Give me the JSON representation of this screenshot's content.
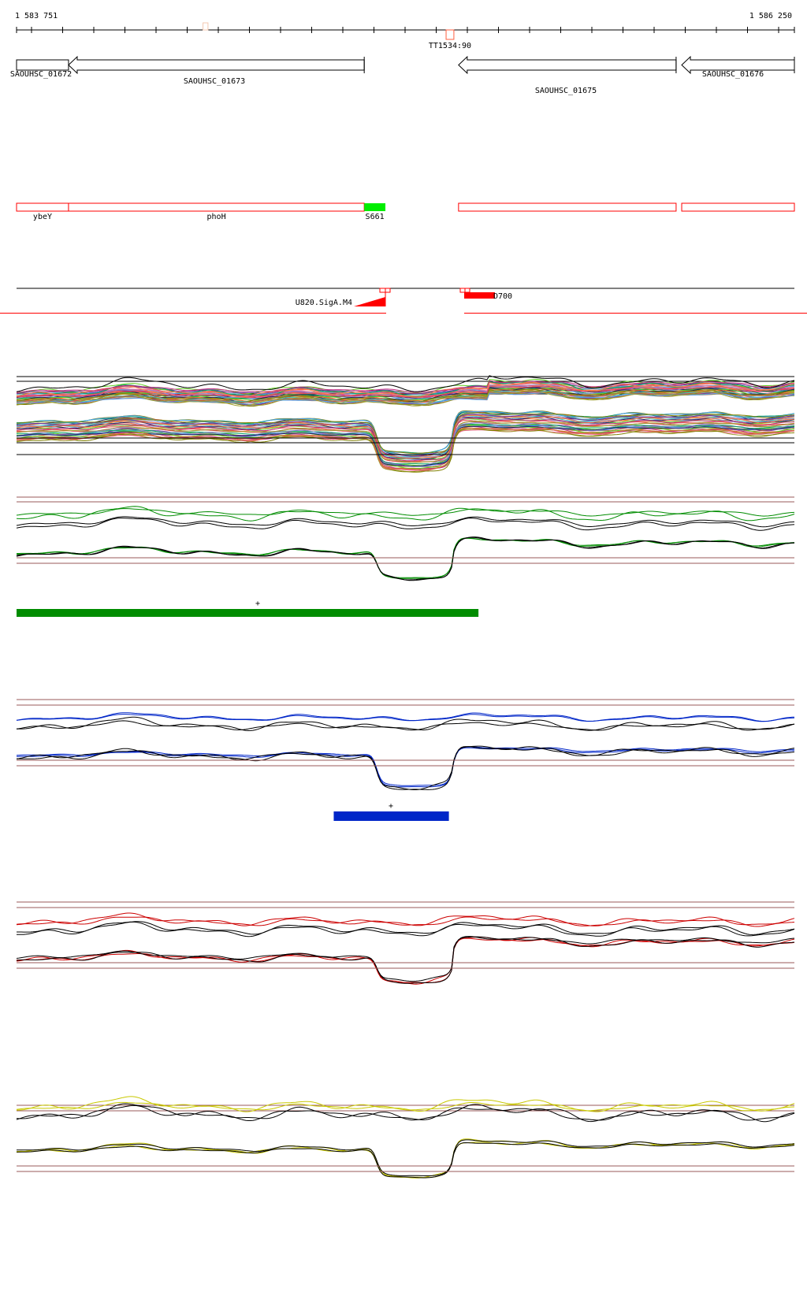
{
  "ruler": {
    "start_label": "1 583 751",
    "end_label": "1 586 250",
    "start_bp": 1583751,
    "end_bp": 1586250,
    "terminator_label": "TT1534:90",
    "terminator_bp": [
      1585131,
      1585156
    ],
    "marker_bp": [
      1584350,
      1584366
    ]
  },
  "genes": [
    {
      "label": "SAOUHSC_01672",
      "start": 1583751,
      "end": 1583918,
      "strand": "+"
    },
    {
      "label": "SAOUHSC_01673",
      "start": 1583918,
      "end": 1584868,
      "strand": "-"
    },
    {
      "label": "SAOUHSC_01675",
      "start": 1585171,
      "end": 1585870,
      "strand": "-"
    },
    {
      "label": "SAOUHSC_01676",
      "start": 1585888,
      "end": 1586250,
      "strand": "-"
    }
  ],
  "annotations": [
    {
      "label": "ybeY",
      "start": 1583751,
      "end": 1583918,
      "color": "#ff0000"
    },
    {
      "label": "phoH",
      "start": 1583918,
      "end": 1584868,
      "color": "#ff0000"
    },
    {
      "label": "S661",
      "start": 1584868,
      "end": 1584936,
      "color": "#00ee00",
      "filled": true
    },
    {
      "label": "",
      "start": 1585171,
      "end": 1585870,
      "color": "#ff0000"
    },
    {
      "label": "",
      "start": 1585888,
      "end": 1586250,
      "color": "#ff0000"
    }
  ],
  "promoters": {
    "left_label": "U820.SigA.M4",
    "right_label": "D700",
    "color": "#ff0000"
  },
  "tracks": [
    {
      "name": "all-conditions",
      "color": "multi"
    },
    {
      "name": "green-condition",
      "color": "#008c00",
      "segment_bp": [
        1583751,
        1585235
      ],
      "segment_color": "#008c00",
      "mark": "+"
    },
    {
      "name": "blue-condition",
      "color": "#0026c8",
      "segment_bp": [
        1584770,
        1585140
      ],
      "segment_color": "#0026c8",
      "mark": "+"
    },
    {
      "name": "red-condition",
      "color": "#cc0000"
    },
    {
      "name": "yellow-condition",
      "color": "#c8c800"
    }
  ],
  "colors": {
    "threshold_line": "#9a5a5a",
    "axis": "#000000"
  }
}
